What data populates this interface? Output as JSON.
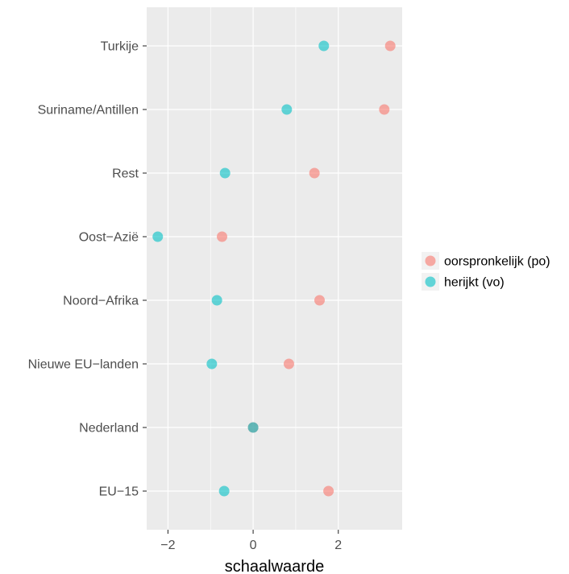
{
  "chart_data": {
    "type": "scatter",
    "xlabel": "schaalwaarde",
    "ylabel": "",
    "xlim": [
      -2.5,
      3.5
    ],
    "x_ticks": [
      -2,
      0,
      2
    ],
    "x_tick_labels": [
      "−2",
      "0",
      "2"
    ],
    "categories": [
      "Turkije",
      "Suriname/Antillen",
      "Rest",
      "Oost−Azië",
      "Noord−Afrika",
      "Nieuwe EU−landen",
      "Nederland",
      "EU−15"
    ],
    "series": [
      {
        "name": "oorspronkelijk (po)",
        "color": "#F8766D",
        "values": [
          3.22,
          3.08,
          1.44,
          -0.73,
          1.56,
          0.84,
          0.0,
          1.77
        ]
      },
      {
        "name": "herijkt (vo)",
        "color": "#00BFC4",
        "values": [
          1.66,
          0.79,
          -0.66,
          -2.24,
          -0.85,
          -0.97,
          0.0,
          -0.68
        ]
      }
    ],
    "grid": true,
    "legend_position": "right",
    "panel_background": "#EBEBEB",
    "grid_color": "#FFFFFF"
  }
}
